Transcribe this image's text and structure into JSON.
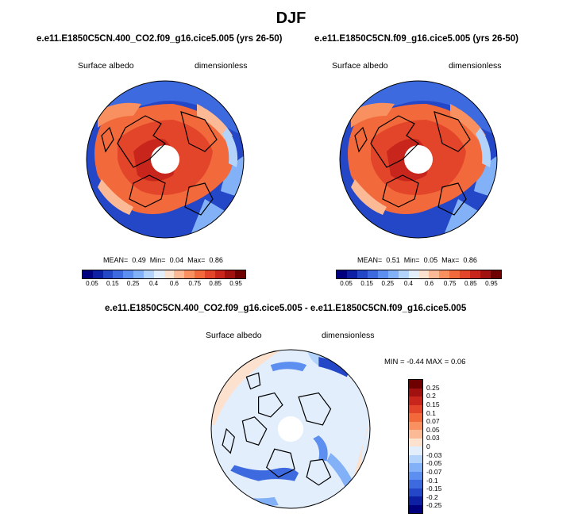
{
  "title": "DJF",
  "panels": [
    {
      "title": "e.e11.E1850C5CN.400_CO2.f09_g16.cice5.005 (yrs 26-50)",
      "variable": "Surface albedo",
      "units": "dimensionless",
      "stats": {
        "mean_label": "MEAN=",
        "mean": "0.49",
        "min_label": "Min=",
        "min": "0.04",
        "max_label": "Max=",
        "max": "0.86"
      }
    },
    {
      "title": "e.e11.E1850C5CN.f09_g16.cice5.005 (yrs 26-50)",
      "variable": "Surface albedo",
      "units": "dimensionless",
      "stats": {
        "mean_label": "MEAN=",
        "mean": "0.51",
        "min_label": "Min=",
        "min": "0.05",
        "max_label": "Max=",
        "max": "0.86"
      }
    }
  ],
  "diff_panel": {
    "title": "e.e11.E1850C5CN.400_CO2.f09_g16.cice5.005 - e.e11.E1850C5CN.f09_g16.cice5.005",
    "variable": "Surface albedo",
    "units": "dimensionless",
    "minmax": "MIN =  -0.44 MAX =   0.06"
  },
  "colorbar_top": {
    "colors": [
      "#00007f",
      "#0d1fa3",
      "#2447c7",
      "#3e6ae0",
      "#5d8ff0",
      "#83b1f7",
      "#b3d3fa",
      "#e2eefc",
      "#fde1cf",
      "#fbb995",
      "#f8905f",
      "#f26a3b",
      "#e3452a",
      "#c8261c",
      "#a0110f",
      "#6f0000"
    ],
    "ticks": [
      "0.05",
      "0.15",
      "0.25",
      "0.4",
      "0.6",
      "0.75",
      "0.85",
      "0.95"
    ]
  },
  "colorbar_diff": {
    "colors": [
      "#6f0000",
      "#a0110f",
      "#c8261c",
      "#e3452a",
      "#f26a3b",
      "#f8905f",
      "#fbb995",
      "#fde1cf",
      "#e2eefc",
      "#b3d3fa",
      "#83b1f7",
      "#5d8ff0",
      "#3e6ae0",
      "#2447c7",
      "#0d1fa3",
      "#00007f"
    ],
    "ticks": [
      "0.25",
      "0.2",
      "0.15",
      "0.1",
      "0.07",
      "0.05",
      "0.03",
      "0",
      "-0.03",
      "-0.05",
      "-0.07",
      "-0.1",
      "-0.15",
      "-0.2",
      "-0.25"
    ]
  }
}
